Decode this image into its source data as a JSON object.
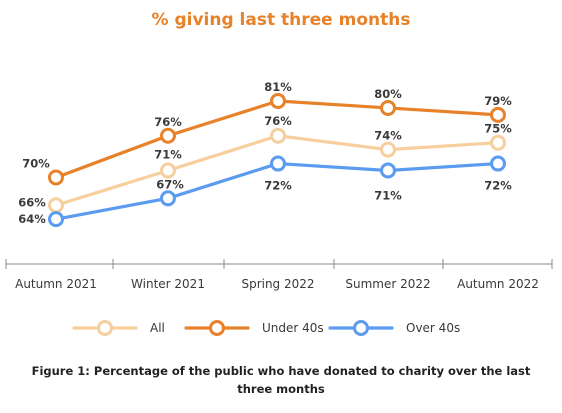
{
  "title": "% giving last three months",
  "caption": "Figure 1: Percentage of the public who have donated to charity over the last three months",
  "chart_data": {
    "type": "line",
    "title": "% giving last three months",
    "categories": [
      "Autumn 2021",
      "Winter 2021",
      "Spring 2022",
      "Summer 2022",
      "Autumn 2022"
    ],
    "series": [
      {
        "name": "All",
        "values": [
          66,
          71,
          76,
          74,
          75
        ],
        "labels": [
          "66%",
          "71%",
          "76%",
          "74%",
          "75%"
        ],
        "color": "#f7cf9e"
      },
      {
        "name": "Under 40s",
        "values": [
          70,
          76,
          81,
          80,
          79
        ],
        "labels": [
          "70%",
          "76%",
          "81%",
          "80%",
          "79%"
        ],
        "color": "#e8822a"
      },
      {
        "name": "Over 40s",
        "values": [
          64,
          67,
          72,
          71,
          72
        ],
        "labels": [
          "64%",
          "67%",
          "72%",
          "71%",
          "72%"
        ],
        "color": "#5b9bf0"
      }
    ],
    "ylim": [
      60,
      85
    ],
    "grid": false,
    "legend_position": "bottom"
  }
}
